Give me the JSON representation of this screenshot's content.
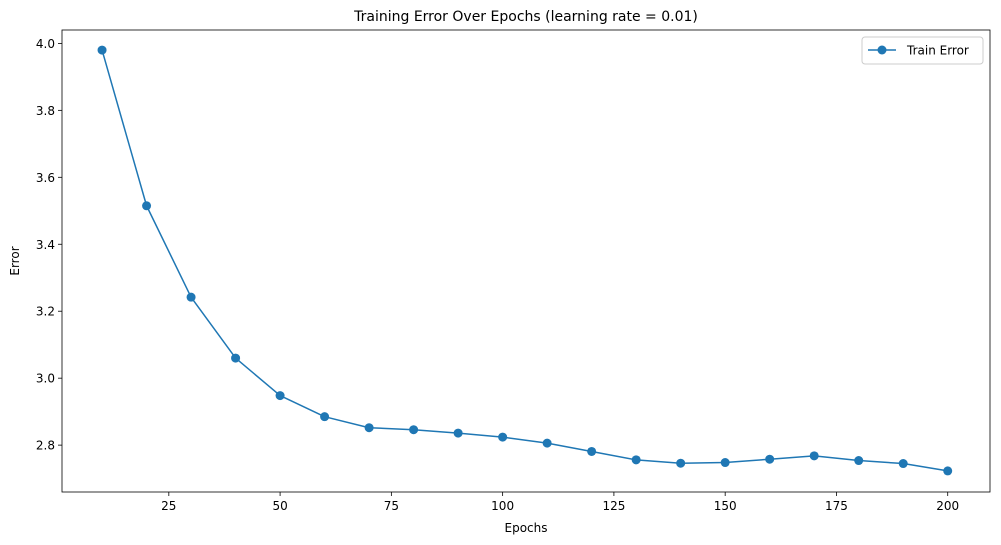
{
  "chart_data": {
    "type": "line",
    "title": "Training Error Over Epochs (learning rate = 0.01)",
    "xlabel": "Epochs",
    "ylabel": "Error",
    "xlim": [
      1,
      209.5
    ],
    "ylim": [
      2.66,
      4.04
    ],
    "xticks": [
      25,
      50,
      75,
      100,
      125,
      150,
      175,
      200
    ],
    "yticks": [
      2.8,
      3.0,
      3.2,
      3.4,
      3.6,
      3.8,
      4.0
    ],
    "xtick_labels": [
      "25",
      "50",
      "75",
      "100",
      "125",
      "150",
      "175",
      "200"
    ],
    "ytick_labels": [
      "2.8",
      "3.0",
      "3.2",
      "3.4",
      "3.6",
      "3.8",
      "4.0"
    ],
    "grid": false,
    "legend_position": "top-right",
    "series": [
      {
        "name": "Train Error",
        "color": "#1f77b4",
        "marker": "circle",
        "x": [
          10,
          20,
          30,
          40,
          50,
          60,
          70,
          80,
          90,
          100,
          110,
          120,
          130,
          140,
          150,
          160,
          170,
          180,
          190,
          200
        ],
        "y": [
          3.98,
          3.515,
          3.242,
          3.06,
          2.948,
          2.885,
          2.852,
          2.846,
          2.836,
          2.824,
          2.806,
          2.781,
          2.756,
          2.746,
          2.748,
          2.758,
          2.768,
          2.754,
          2.745,
          2.723
        ]
      }
    ]
  }
}
